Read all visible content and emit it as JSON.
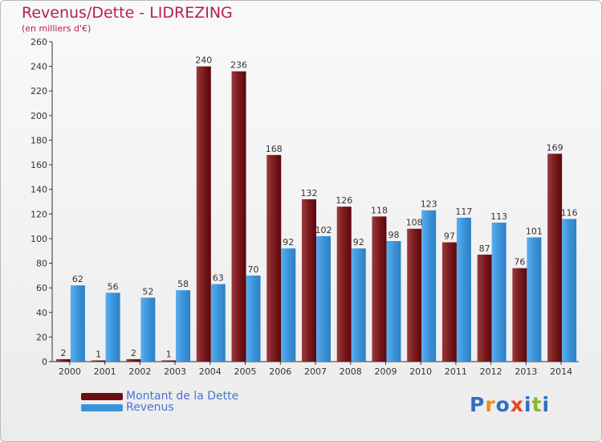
{
  "header": {
    "title": "Revenus/Dette - LIDREZING",
    "subtitle": "(en milliers d'€)"
  },
  "legend": {
    "items": [
      {
        "label": "Montant de la Dette",
        "color": "#6b0d12"
      },
      {
        "label": "Revenus",
        "color": "#3b94da"
      }
    ]
  },
  "logo": {
    "letters": [
      "P",
      "r",
      "o",
      "x",
      "i",
      "t",
      "i"
    ],
    "colors": [
      "#2f6fc4",
      "#f08a1c",
      "#2f6fc4",
      "#e8451e",
      "#2f6fc4",
      "#89b82f",
      "#2f6fc4"
    ]
  },
  "chart_data": {
    "type": "bar",
    "categories": [
      "2000",
      "2001",
      "2002",
      "2003",
      "2004",
      "2005",
      "2006",
      "2007",
      "2008",
      "2009",
      "2010",
      "2011",
      "2012",
      "2013",
      "2014"
    ],
    "series": [
      {
        "name": "Montant de la Dette",
        "color": "#6b0d12",
        "values": [
          2,
          1,
          2,
          1,
          240,
          236,
          168,
          132,
          126,
          118,
          108,
          97,
          87,
          76,
          169
        ]
      },
      {
        "name": "Revenus",
        "color": "#3b94da",
        "values": [
          62,
          56,
          52,
          58,
          63,
          70,
          92,
          102,
          92,
          98,
          123,
          117,
          113,
          101,
          116
        ]
      }
    ],
    "yticks": [
      0,
      20,
      40,
      60,
      80,
      100,
      120,
      140,
      160,
      180,
      200,
      220,
      240,
      260
    ],
    "ylim": [
      0,
      260
    ],
    "grid": false,
    "data_labels": true
  }
}
